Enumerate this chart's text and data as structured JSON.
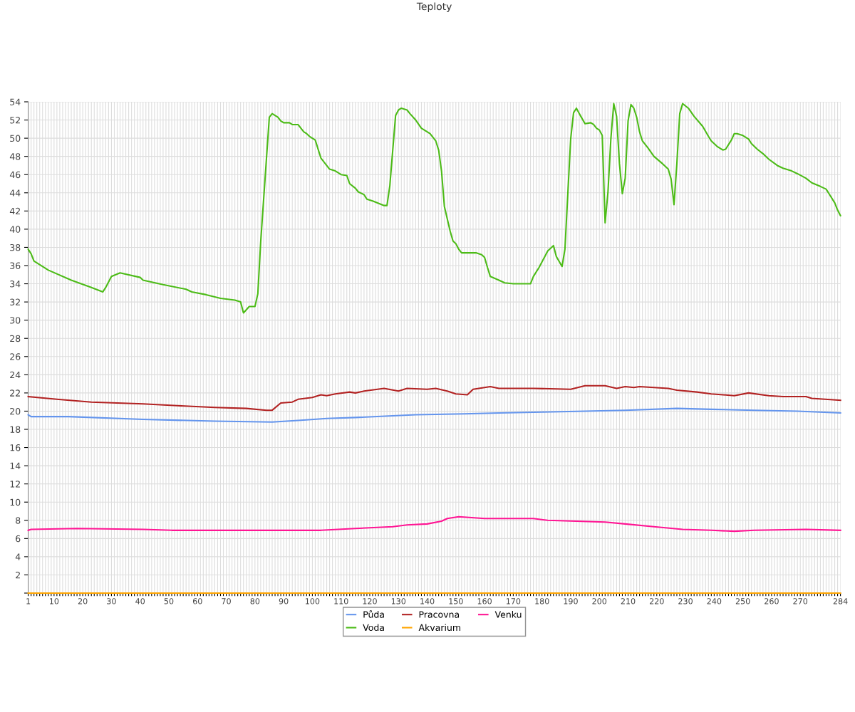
{
  "chart_data": {
    "type": "line",
    "title": "Teploty",
    "xlim": [
      1,
      284
    ],
    "ylim": [
      0,
      54
    ],
    "xticks": [
      1,
      {
        "value": 2,
        "label": null
      },
      {
        "value": 3,
        "label": null
      },
      {
        "value": 4,
        "label": null
      },
      {
        "value": 5,
        "label": null
      },
      {
        "value": 6,
        "label": null
      },
      {
        "value": 7,
        "label": null
      },
      {
        "value": 8,
        "label": null
      },
      {
        "value": 9,
        "label": null
      },
      10,
      {
        "value": 11,
        "label": null
      },
      {
        "value": 12,
        "label": null
      },
      {
        "value": 13,
        "label": null
      },
      {
        "value": 14,
        "label": null
      },
      {
        "value": 15,
        "label": null
      },
      {
        "value": 16,
        "label": null
      },
      {
        "value": 17,
        "label": null
      },
      {
        "value": 18,
        "label": null
      },
      {
        "value": 19,
        "label": null
      },
      20,
      {
        "value": 21,
        "label": null
      },
      {
        "value": 22,
        "label": null
      },
      {
        "value": 23,
        "label": null
      },
      {
        "value": 24,
        "label": null
      },
      {
        "value": 25,
        "label": null
      },
      {
        "value": 26,
        "label": null
      },
      {
        "value": 27,
        "label": null
      },
      {
        "value": 28,
        "label": null
      },
      {
        "value": 29,
        "label": null
      },
      30,
      {
        "value": 31,
        "label": null
      },
      {
        "value": 32,
        "label": null
      },
      {
        "value": 33,
        "label": null
      },
      {
        "value": 34,
        "label": null
      },
      {
        "value": 35,
        "label": null
      },
      {
        "value": 36,
        "label": null
      },
      {
        "value": 37,
        "label": null
      },
      {
        "value": 38,
        "label": null
      },
      {
        "value": 39,
        "label": null
      },
      40,
      {
        "value": 41,
        "label": null
      },
      {
        "value": 42,
        "label": null
      },
      {
        "value": 43,
        "label": null
      },
      {
        "value": 44,
        "label": null
      },
      {
        "value": 45,
        "label": null
      },
      {
        "value": 46,
        "label": null
      },
      {
        "value": 47,
        "label": null
      },
      {
        "value": 48,
        "label": null
      },
      {
        "value": 49,
        "label": null
      },
      50,
      {
        "value": 51,
        "label": null
      },
      {
        "value": 52,
        "label": null
      },
      {
        "value": 53,
        "label": null
      },
      {
        "value": 54,
        "label": null
      },
      {
        "value": 55,
        "label": null
      },
      {
        "value": 56,
        "label": null
      },
      {
        "value": 57,
        "label": null
      },
      {
        "value": 58,
        "label": null
      },
      {
        "value": 59,
        "label": null
      },
      60,
      {
        "value": 61,
        "label": null
      },
      {
        "value": 62,
        "label": null
      },
      {
        "value": 63,
        "label": null
      },
      {
        "value": 64,
        "label": null
      },
      {
        "value": 65,
        "label": null
      },
      {
        "value": 66,
        "label": null
      },
      {
        "value": 67,
        "label": null
      },
      {
        "value": 68,
        "label": null
      },
      {
        "value": 69,
        "label": null
      },
      70,
      {
        "value": 71,
        "label": null
      },
      {
        "value": 72,
        "label": null
      },
      {
        "value": 73,
        "label": null
      },
      {
        "value": 74,
        "label": null
      },
      {
        "value": 75,
        "label": null
      },
      {
        "value": 76,
        "label": null
      },
      {
        "value": 77,
        "label": null
      },
      {
        "value": 78,
        "label": null
      },
      {
        "value": 79,
        "label": null
      },
      80,
      {
        "value": 81,
        "label": null
      },
      {
        "value": 82,
        "label": null
      },
      {
        "value": 83,
        "label": null
      },
      {
        "value": 84,
        "label": null
      },
      {
        "value": 85,
        "label": null
      },
      {
        "value": 86,
        "label": null
      },
      {
        "value": 87,
        "label": null
      },
      {
        "value": 88,
        "label": null
      },
      {
        "value": 89,
        "label": null
      },
      90,
      {
        "value": 91,
        "label": null
      },
      {
        "value": 92,
        "label": null
      },
      {
        "value": 93,
        "label": null
      },
      {
        "value": 94,
        "label": null
      },
      {
        "value": 95,
        "label": null
      },
      {
        "value": 96,
        "label": null
      },
      {
        "value": 97,
        "label": null
      },
      {
        "value": 98,
        "label": null
      },
      {
        "value": 99,
        "label": null
      },
      100,
      {
        "value": 101,
        "label": null
      },
      {
        "value": 102,
        "label": null
      },
      {
        "value": 103,
        "label": null
      },
      {
        "value": 104,
        "label": null
      },
      {
        "value": 105,
        "label": null
      },
      {
        "value": 106,
        "label": null
      },
      {
        "value": 107,
        "label": null
      },
      {
        "value": 108,
        "label": null
      },
      {
        "value": 109,
        "label": null
      },
      110,
      {
        "value": 111,
        "label": null
      },
      {
        "value": 112,
        "label": null
      },
      {
        "value": 113,
        "label": null
      },
      {
        "value": 114,
        "label": null
      },
      {
        "value": 115,
        "label": null
      },
      {
        "value": 116,
        "label": null
      },
      {
        "value": 117,
        "label": null
      },
      {
        "value": 118,
        "label": null
      },
      {
        "value": 119,
        "label": null
      },
      120,
      {
        "value": 121,
        "label": null
      },
      {
        "value": 122,
        "label": null
      },
      {
        "value": 123,
        "label": null
      },
      {
        "value": 124,
        "label": null
      },
      {
        "value": 125,
        "label": null
      },
      {
        "value": 126,
        "label": null
      },
      {
        "value": 127,
        "label": null
      },
      {
        "value": 128,
        "label": null
      },
      {
        "value": 129,
        "label": null
      },
      130,
      {
        "value": 131,
        "label": null
      },
      {
        "value": 132,
        "label": null
      },
      {
        "value": 133,
        "label": null
      },
      {
        "value": 134,
        "label": null
      },
      {
        "value": 135,
        "label": null
      },
      {
        "value": 136,
        "label": null
      },
      {
        "value": 137,
        "label": null
      },
      {
        "value": 138,
        "label": null
      },
      {
        "value": 139,
        "label": null
      },
      140,
      {
        "value": 141,
        "label": null
      },
      {
        "value": 142,
        "label": null
      },
      {
        "value": 143,
        "label": null
      },
      {
        "value": 144,
        "label": null
      },
      {
        "value": 145,
        "label": null
      },
      {
        "value": 146,
        "label": null
      },
      {
        "value": 147,
        "label": null
      },
      {
        "value": 148,
        "label": null
      },
      {
        "value": 149,
        "label": null
      },
      150,
      {
        "value": 151,
        "label": null
      },
      {
        "value": 152,
        "label": null
      },
      {
        "value": 153,
        "label": null
      },
      {
        "value": 154,
        "label": null
      },
      {
        "value": 155,
        "label": null
      },
      {
        "value": 156,
        "label": null
      },
      {
        "value": 157,
        "label": null
      },
      {
        "value": 158,
        "label": null
      },
      {
        "value": 159,
        "label": null
      },
      160,
      {
        "value": 161,
        "label": null
      },
      {
        "value": 162,
        "label": null
      },
      {
        "value": 163,
        "label": null
      },
      {
        "value": 164,
        "label": null
      },
      {
        "value": 165,
        "label": null
      },
      {
        "value": 166,
        "label": null
      },
      {
        "value": 167,
        "label": null
      },
      {
        "value": 168,
        "label": null
      },
      {
        "value": 169,
        "label": null
      },
      170,
      {
        "value": 171,
        "label": null
      },
      {
        "value": 172,
        "label": null
      },
      {
        "value": 173,
        "label": null
      },
      {
        "value": 174,
        "label": null
      },
      {
        "value": 175,
        "label": null
      },
      {
        "value": 176,
        "label": null
      },
      {
        "value": 177,
        "label": null
      },
      {
        "value": 178,
        "label": null
      },
      {
        "value": 179,
        "label": null
      },
      180,
      {
        "value": 181,
        "label": null
      },
      {
        "value": 182,
        "label": null
      },
      {
        "value": 183,
        "label": null
      },
      {
        "value": 184,
        "label": null
      },
      {
        "value": 185,
        "label": null
      },
      {
        "value": 186,
        "label": null
      },
      {
        "value": 187,
        "label": null
      },
      {
        "value": 188,
        "label": null
      },
      {
        "value": 189,
        "label": null
      },
      190,
      {
        "value": 191,
        "label": null
      },
      {
        "value": 192,
        "label": null
      },
      {
        "value": 193,
        "label": null
      },
      {
        "value": 194,
        "label": null
      },
      {
        "value": 195,
        "label": null
      },
      {
        "value": 196,
        "label": null
      },
      {
        "value": 197,
        "label": null
      },
      {
        "value": 198,
        "label": null
      },
      {
        "value": 199,
        "label": null
      },
      200,
      {
        "value": 201,
        "label": null
      },
      {
        "value": 202,
        "label": null
      },
      {
        "value": 203,
        "label": null
      },
      {
        "value": 204,
        "label": null
      },
      {
        "value": 205,
        "label": null
      },
      {
        "value": 206,
        "label": null
      },
      {
        "value": 207,
        "label": null
      },
      {
        "value": 208,
        "label": null
      },
      {
        "value": 209,
        "label": null
      },
      210,
      {
        "value": 211,
        "label": null
      },
      {
        "value": 212,
        "label": null
      },
      {
        "value": 213,
        "label": null
      },
      {
        "value": 214,
        "label": null
      },
      {
        "value": 215,
        "label": null
      },
      {
        "value": 216,
        "label": null
      },
      {
        "value": 217,
        "label": null
      },
      {
        "value": 218,
        "label": null
      },
      {
        "value": 219,
        "label": null
      },
      220,
      {
        "value": 221,
        "label": null
      },
      {
        "value": 222,
        "label": null
      },
      {
        "value": 223,
        "label": null
      },
      {
        "value": 224,
        "label": null
      },
      {
        "value": 225,
        "label": null
      },
      {
        "value": 226,
        "label": null
      },
      {
        "value": 227,
        "label": null
      },
      {
        "value": 228,
        "label": null
      },
      {
        "value": 229,
        "label": null
      },
      230,
      {
        "value": 231,
        "label": null
      },
      {
        "value": 232,
        "label": null
      },
      {
        "value": 233,
        "label": null
      },
      {
        "value": 234,
        "label": null
      },
      {
        "value": 235,
        "label": null
      },
      {
        "value": 236,
        "label": null
      },
      {
        "value": 237,
        "label": null
      },
      {
        "value": 238,
        "label": null
      },
      {
        "value": 239,
        "label": null
      },
      240,
      {
        "value": 241,
        "label": null
      },
      {
        "value": 242,
        "label": null
      },
      {
        "value": 243,
        "label": null
      },
      {
        "value": 244,
        "label": null
      },
      {
        "value": 245,
        "label": null
      },
      {
        "value": 246,
        "label": null
      },
      {
        "value": 247,
        "label": null
      },
      {
        "value": 248,
        "label": null
      },
      {
        "value": 249,
        "label": null
      },
      250,
      {
        "value": 251,
        "label": null
      },
      {
        "value": 252,
        "label": null
      },
      {
        "value": 253,
        "label": null
      },
      {
        "value": 254,
        "label": null
      },
      {
        "value": 255,
        "label": null
      },
      {
        "value": 256,
        "label": null
      },
      {
        "value": 257,
        "label": null
      },
      {
        "value": 258,
        "label": null
      },
      {
        "value": 259,
        "label": null
      },
      260,
      {
        "value": 261,
        "label": null
      },
      {
        "value": 262,
        "label": null
      },
      {
        "value": 263,
        "label": null
      },
      {
        "value": 264,
        "label": null
      },
      {
        "value": 265,
        "label": null
      },
      {
        "value": 266,
        "label": null
      },
      {
        "value": 267,
        "label": null
      },
      {
        "value": 268,
        "label": null
      },
      {
        "value": 269,
        "label": null
      },
      270,
      {
        "value": 271,
        "label": null
      },
      {
        "value": 272,
        "label": null
      },
      {
        "value": 273,
        "label": null
      },
      {
        "value": 274,
        "label": null
      },
      {
        "value": 275,
        "label": null
      },
      {
        "value": 276,
        "label": null
      },
      {
        "value": 277,
        "label": null
      },
      {
        "value": 278,
        "label": null
      },
      {
        "value": 279,
        "label": null
      },
      {
        "value": 280,
        "label": null
      },
      {
        "value": 281,
        "label": null
      },
      {
        "value": 282,
        "label": null
      },
      {
        "value": 283,
        "label": null
      },
      284
    ],
    "yticks": [
      {
        "value": 0,
        "label": null
      },
      2,
      4,
      6,
      8,
      10,
      12,
      14,
      16,
      18,
      20,
      22,
      24,
      26,
      28,
      30,
      32,
      34,
      36,
      38,
      40,
      42,
      44,
      46,
      48,
      50,
      52,
      54
    ],
    "grid": true,
    "legend": "bottom",
    "marker": "none",
    "line_style": "solid",
    "series": [
      {
        "name": "Půda",
        "color": "#6495ed",
        "x": [
          1,
          2,
          15,
          41,
          66,
          86,
          96,
          105,
          115,
          136,
          153,
          165,
          180,
          195,
          209,
          227,
          239,
          254,
          269,
          284
        ],
        "values": [
          19.6,
          19.4,
          19.4,
          19.1,
          18.9,
          18.8,
          19.0,
          19.2,
          19.3,
          19.6,
          19.7,
          19.8,
          19.9,
          20.0,
          20.1,
          20.3,
          20.2,
          20.1,
          20.0,
          19.8
        ]
      },
      {
        "name": "Voda",
        "color": "#4cbb17",
        "x": [
          1,
          2,
          3,
          8,
          16,
          23,
          27,
          28,
          30,
          33,
          40,
          41,
          48,
          56,
          58,
          63,
          68,
          73,
          75,
          76,
          78,
          80,
          81,
          82,
          85,
          86,
          88,
          89,
          90,
          92,
          93,
          95,
          97,
          98,
          99,
          101,
          103,
          106,
          108,
          110,
          112,
          113,
          115,
          116,
          118,
          119,
          121,
          125,
          126,
          127,
          129,
          130,
          131,
          133,
          134,
          136,
          138,
          140,
          141,
          143,
          144,
          145,
          146,
          148,
          149,
          150,
          151,
          152,
          157,
          159,
          160,
          161,
          162,
          165,
          167,
          170,
          176,
          177,
          179,
          181,
          182,
          184,
          185,
          187,
          188,
          190,
          191,
          192,
          193,
          195,
          197,
          198,
          199,
          200,
          201,
          202,
          203,
          204,
          205,
          206,
          207,
          208,
          209,
          210,
          211,
          212,
          213,
          214,
          215,
          217,
          219,
          222,
          224,
          225,
          226,
          227,
          228,
          229,
          231,
          233,
          236,
          238,
          239,
          241,
          243,
          244,
          246,
          247,
          248,
          250,
          252,
          253,
          255,
          257,
          259,
          262,
          264,
          267,
          269,
          272,
          274,
          277,
          279,
          280,
          282,
          283,
          284
        ],
        "values": [
          37.8,
          37.3,
          36.5,
          35.5,
          34.4,
          33.6,
          33.1,
          33.6,
          34.8,
          35.2,
          34.7,
          34.4,
          33.9,
          33.4,
          33.1,
          32.8,
          32.4,
          32.2,
          32.0,
          30.8,
          31.5,
          31.5,
          32.9,
          38.6,
          52.3,
          52.7,
          52.3,
          51.9,
          51.7,
          51.7,
          51.5,
          51.5,
          50.7,
          50.5,
          50.2,
          49.8,
          47.8,
          46.6,
          46.4,
          46.0,
          45.9,
          45.0,
          44.5,
          44.1,
          43.8,
          43.3,
          43.1,
          42.6,
          42.6,
          44.8,
          52.5,
          53.1,
          53.3,
          53.1,
          52.7,
          52.0,
          51.1,
          50.7,
          50.5,
          49.7,
          48.7,
          46.4,
          42.5,
          39.8,
          38.7,
          38.4,
          37.8,
          37.4,
          37.4,
          37.2,
          36.9,
          35.8,
          34.8,
          34.4,
          34.1,
          34.0,
          34.0,
          34.8,
          35.8,
          37.0,
          37.6,
          38.2,
          37.0,
          35.9,
          37.8,
          49.9,
          52.8,
          53.3,
          52.7,
          51.6,
          51.7,
          51.5,
          51.1,
          50.9,
          50.3,
          40.7,
          44.1,
          49.9,
          53.8,
          52.4,
          47.2,
          43.9,
          45.6,
          51.9,
          53.7,
          53.3,
          52.3,
          50.7,
          49.7,
          48.9,
          48.0,
          47.2,
          46.6,
          45.5,
          42.7,
          47.2,
          52.7,
          53.8,
          53.3,
          52.4,
          51.3,
          50.2,
          49.7,
          49.1,
          48.7,
          48.8,
          49.8,
          50.5,
          50.5,
          50.3,
          49.9,
          49.4,
          48.8,
          48.3,
          47.7,
          47.0,
          46.7,
          46.4,
          46.1,
          45.6,
          45.1,
          44.7,
          44.4,
          43.9,
          42.9,
          42.1,
          41.5
        ]
      },
      {
        "name": "Pracovna",
        "color": "#b22222",
        "x": [
          1,
          11,
          23,
          41,
          53,
          66,
          77,
          84,
          86,
          89,
          93,
          95,
          100,
          103,
          105,
          108,
          113,
          115,
          118,
          125,
          130,
          133,
          140,
          143,
          147,
          150,
          154,
          156,
          162,
          165,
          177,
          190,
          195,
          202,
          206,
          209,
          212,
          214,
          224,
          227,
          234,
          239,
          247,
          252,
          259,
          264,
          272,
          274,
          284
        ],
        "values": [
          21.6,
          21.3,
          21.0,
          20.8,
          20.6,
          20.4,
          20.3,
          20.1,
          20.1,
          20.9,
          21.0,
          21.3,
          21.5,
          21.8,
          21.7,
          21.9,
          22.1,
          22.0,
          22.2,
          22.5,
          22.2,
          22.5,
          22.4,
          22.5,
          22.2,
          21.9,
          21.8,
          22.4,
          22.7,
          22.5,
          22.5,
          22.4,
          22.8,
          22.8,
          22.5,
          22.7,
          22.6,
          22.7,
          22.5,
          22.3,
          22.1,
          21.9,
          21.7,
          22.0,
          21.7,
          21.6,
          21.6,
          21.4,
          21.2
        ]
      },
      {
        "name": "Akvarium",
        "color": "#ffa500",
        "x": [
          1,
          284
        ],
        "values": [
          0,
          0
        ]
      },
      {
        "name": "Venku",
        "color": "#ff1493",
        "x": [
          1,
          2,
          18,
          41,
          51,
          66,
          103,
          115,
          128,
          133,
          140,
          145,
          147,
          151,
          160,
          165,
          177,
          182,
          202,
          209,
          219,
          229,
          239,
          247,
          254,
          272,
          284
        ],
        "values": [
          6.9,
          7.0,
          7.1,
          7.0,
          6.9,
          6.9,
          6.9,
          7.1,
          7.3,
          7.5,
          7.6,
          7.9,
          8.2,
          8.4,
          8.2,
          8.2,
          8.2,
          8.0,
          7.8,
          7.6,
          7.3,
          7.0,
          6.9,
          6.8,
          6.9,
          7.0,
          6.9
        ]
      }
    ]
  }
}
